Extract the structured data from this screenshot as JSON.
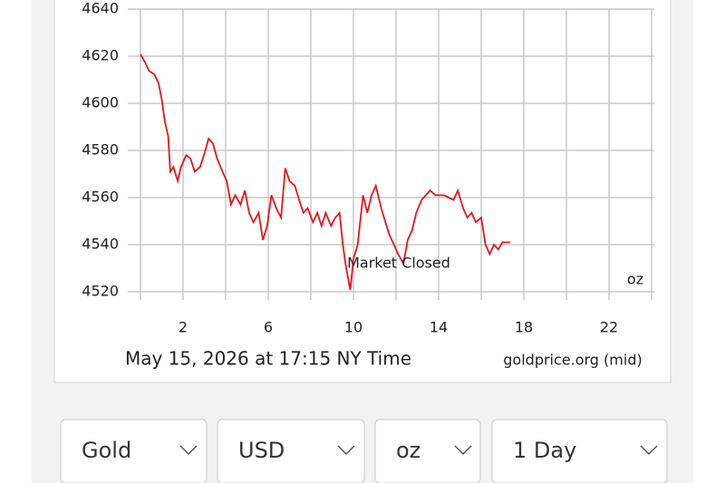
{
  "chart_data": {
    "type": "line",
    "x": [
      0,
      0.2,
      0.4,
      0.65,
      0.85,
      1.0,
      1.15,
      1.3,
      1.4,
      1.55,
      1.75,
      1.9,
      2.15,
      2.35,
      2.55,
      2.8,
      3.0,
      3.2,
      3.4,
      3.6,
      3.85,
      4.05,
      4.25,
      4.45,
      4.7,
      4.9,
      5.1,
      5.3,
      5.55,
      5.75,
      5.95,
      6.15,
      6.4,
      6.6,
      6.8,
      7.0,
      7.25,
      7.45,
      7.65,
      7.85,
      8.1,
      8.3,
      8.5,
      8.7,
      8.95,
      9.15,
      9.35,
      9.5,
      9.65,
      9.85,
      10.0,
      10.2,
      10.45,
      10.65,
      10.85,
      11.05,
      11.3,
      11.5,
      11.7,
      11.9,
      12.1,
      12.35,
      12.55,
      12.75,
      12.95,
      13.2,
      13.4,
      13.6,
      13.85,
      14.25,
      14.7,
      14.9,
      15.15,
      15.35,
      15.55,
      15.75,
      16.0,
      16.2,
      16.4,
      16.6,
      16.8,
      17.0,
      17.35
    ],
    "series": [
      {
        "color": "#e8141b",
        "values": [
          4620.8,
          4617.7,
          4613.8,
          4612.3,
          4608.5,
          4601.5,
          4592,
          4586,
          4571,
          4573,
          4567,
          4573,
          4578,
          4576.5,
          4571,
          4573,
          4578.5,
          4585,
          4583,
          4576.5,
          4571,
          4567,
          4557,
          4561,
          4557,
          4563,
          4553.5,
          4549.5,
          4553.5,
          4542,
          4548,
          4561,
          4555,
          4551.5,
          4572.5,
          4567,
          4565,
          4559,
          4553.5,
          4555.5,
          4549.5,
          4553.5,
          4548,
          4553.5,
          4548,
          4551.5,
          4553.5,
          4540,
          4530.5,
          4520.8,
          4534,
          4540,
          4561,
          4553.5,
          4561,
          4565,
          4555.5,
          4549.5,
          4544,
          4540,
          4536,
          4532,
          4542,
          4546,
          4553.5,
          4559,
          4561,
          4563,
          4561,
          4561,
          4559,
          4563,
          4555.5,
          4551.5,
          4553.5,
          4549.5,
          4551.5,
          4540,
          4536,
          4540,
          4538,
          4541,
          4541
        ]
      }
    ],
    "xlim": [
      0,
      24
    ],
    "xticks": [
      2,
      6,
      10,
      14,
      18,
      22
    ],
    "x_gridlines": [
      0,
      2,
      4,
      6,
      8,
      10,
      12,
      14,
      16,
      18,
      20,
      22,
      24
    ],
    "ylim": [
      4520,
      4640
    ],
    "yticks": [
      4520,
      4540,
      4560,
      4580,
      4600,
      4620,
      4640
    ],
    "grid": true,
    "annotations": [
      "Market Closed",
      "oz"
    ],
    "caption": "May 15, 2026 at 17:15 NY Time",
    "source": "goldprice.org (mid)"
  },
  "controls": [
    "Gold",
    "USD",
    "oz",
    "1 Day"
  ]
}
